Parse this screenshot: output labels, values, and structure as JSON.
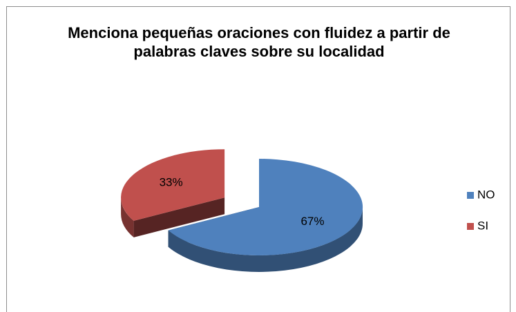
{
  "chart_data": {
    "type": "pie",
    "title": "Menciona pequeñas oraciones con fluidez  a partir de palabras claves sobre su localidad",
    "categories": [
      "NO",
      "SI"
    ],
    "values": [
      67,
      33
    ],
    "value_labels": [
      "67%",
      "33%"
    ],
    "colors": [
      "#4f81bd",
      "#c0504d"
    ],
    "legend": "right"
  }
}
